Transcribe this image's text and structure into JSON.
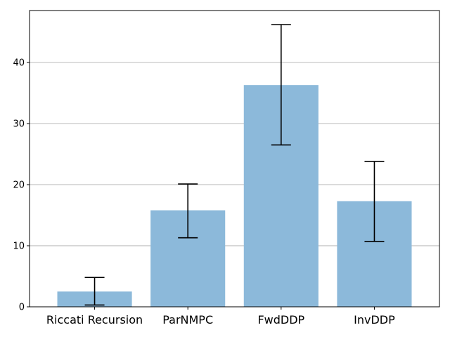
{
  "chart_data": {
    "type": "bar",
    "categories": [
      "Riccati Recursion",
      "ParNMPC",
      "FwdDDP",
      "InvDDP"
    ],
    "values": [
      2.5,
      15.8,
      36.3,
      17.3
    ],
    "error_bars": [
      {
        "low": 0.3,
        "high": 4.8
      },
      {
        "low": 11.3,
        "high": 20.1
      },
      {
        "low": 26.5,
        "high": 46.2
      },
      {
        "low": 10.7,
        "high": 23.8
      }
    ],
    "title": "",
    "xlabel": "",
    "ylabel": "",
    "ylim": [
      0,
      48.5
    ],
    "yticks": [
      0,
      10,
      20,
      30,
      40
    ],
    "grid": "y",
    "bar_color": "#8cb9da",
    "error_color": "#000000",
    "grid_color": "#b0b0b0"
  }
}
